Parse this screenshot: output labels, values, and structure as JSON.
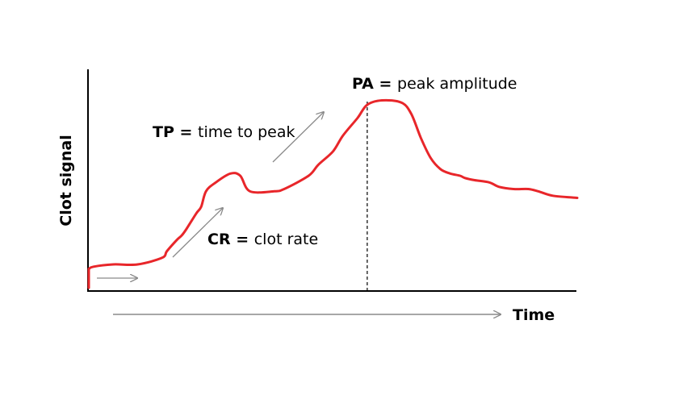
{
  "colors": {
    "curve": "#e8262a",
    "axis": "#000000",
    "guide_arrow": "#8a8a8a",
    "peak_line": "#000000",
    "text": "#000000"
  },
  "labels": {
    "y_axis": "Clot signal",
    "x_axis": "Time",
    "pa_abbrev": "PA",
    "pa_equals": " = ",
    "pa_text": "peak amplitude",
    "tp_abbrev": "TP",
    "tp_equals": " = ",
    "tp_text": "time to peak",
    "cr_abbrev": "CR",
    "cr_equals": " = ",
    "cr_text": "clot rate"
  },
  "curve": {
    "description_free": true,
    "x": [
      0,
      1,
      5,
      10,
      15,
      16,
      18,
      19,
      20,
      22,
      23,
      24,
      26,
      29,
      31,
      33,
      38,
      40,
      45,
      47,
      50,
      52,
      55,
      57,
      60,
      64,
      66,
      68,
      70,
      72,
      74,
      76,
      77,
      79,
      82,
      84,
      87,
      90,
      92,
      95,
      100
    ],
    "y": [
      0.1,
      0.11,
      0.12,
      0.12,
      0.15,
      0.18,
      0.23,
      0.25,
      0.28,
      0.35,
      0.38,
      0.45,
      0.49,
      0.53,
      0.52,
      0.45,
      0.45,
      0.46,
      0.52,
      0.57,
      0.63,
      0.7,
      0.78,
      0.84,
      0.86,
      0.85,
      0.8,
      0.69,
      0.6,
      0.55,
      0.53,
      0.52,
      0.51,
      0.5,
      0.49,
      0.47,
      0.46,
      0.46,
      0.45,
      0.43,
      0.42
    ]
  },
  "peak_x": 57
}
